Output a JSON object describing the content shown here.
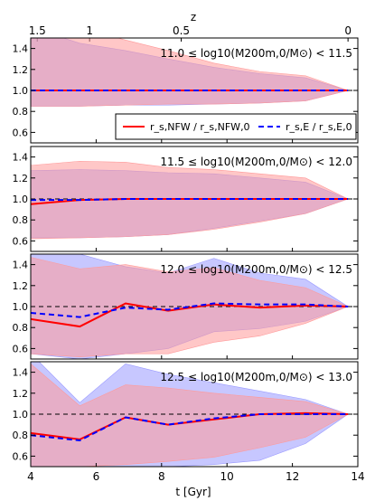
{
  "figure": {
    "top_axis_label": "z",
    "top_ticks": [
      {
        "z": 1.5,
        "t": 4.2,
        "label": "1.5"
      },
      {
        "z": 1.0,
        "t": 5.8,
        "label": "1"
      },
      {
        "z": 0.5,
        "t": 8.6,
        "label": "0.5"
      },
      {
        "z": 0.0,
        "t": 13.7,
        "label": "0"
      }
    ],
    "legend": {
      "nfw_label": "r_s,NFW / r_s,NFW,0",
      "e_label": "r_s,E / r_s,E,0"
    },
    "colors": {
      "nfw_line": "#ff0000",
      "e_line": "#0000ff",
      "nfw_band": "#ff9999",
      "e_band": "#9999ff",
      "overlap": "#b07fc0",
      "reference": "#000000"
    }
  },
  "chart_data": [
    {
      "type": "line",
      "panel_label": "11.0 ≤ log10(M200m,0/M⊙) < 11.5",
      "xlim": [
        4,
        14
      ],
      "ylim": [
        0.5,
        1.5
      ],
      "yticks": [
        0.6,
        0.8,
        1.0,
        1.2,
        1.4
      ],
      "x": [
        4.0,
        5.5,
        6.9,
        8.2,
        9.6,
        11.0,
        12.4,
        13.7
      ],
      "series": [
        {
          "name": "r_s,NFW / r_s,NFW,0",
          "values": [
            1.0,
            1.0,
            1.0,
            1.0,
            1.0,
            1.0,
            1.0,
            1.0
          ],
          "band_low": [
            0.85,
            0.85,
            0.86,
            0.87,
            0.87,
            0.88,
            0.9,
            1.0
          ],
          "band_high": [
            1.6,
            1.6,
            1.48,
            1.38,
            1.26,
            1.18,
            1.14,
            1.0
          ]
        },
        {
          "name": "r_s,E / r_s,E,0",
          "values": [
            1.0,
            1.0,
            1.0,
            1.0,
            1.0,
            1.0,
            1.0,
            1.0
          ],
          "band_low": [
            0.85,
            0.85,
            0.86,
            0.86,
            0.87,
            0.88,
            0.9,
            1.0
          ],
          "band_high": [
            1.6,
            1.45,
            1.38,
            1.3,
            1.22,
            1.16,
            1.12,
            1.0
          ]
        }
      ]
    },
    {
      "type": "line",
      "panel_label": "11.5 ≤ log10(M200m,0/M⊙) < 12.0",
      "xlim": [
        4,
        14
      ],
      "ylim": [
        0.5,
        1.5
      ],
      "yticks": [
        0.6,
        0.8,
        1.0,
        1.2,
        1.4
      ],
      "x": [
        4.0,
        5.5,
        6.9,
        8.2,
        9.6,
        11.0,
        12.4,
        13.7
      ],
      "series": [
        {
          "name": "r_s,NFW / r_s,NFW,0",
          "values": [
            0.95,
            0.99,
            1.0,
            1.0,
            1.0,
            1.0,
            1.0,
            1.0
          ],
          "band_low": [
            0.62,
            0.63,
            0.64,
            0.66,
            0.71,
            0.78,
            0.86,
            1.0
          ],
          "band_high": [
            1.32,
            1.36,
            1.35,
            1.3,
            1.28,
            1.24,
            1.2,
            1.0
          ]
        },
        {
          "name": "r_s,E / r_s,E,0",
          "values": [
            0.99,
            0.99,
            1.0,
            1.0,
            1.0,
            1.0,
            1.0,
            1.0
          ],
          "band_low": [
            0.63,
            0.63,
            0.64,
            0.66,
            0.72,
            0.79,
            0.86,
            1.0
          ],
          "band_high": [
            1.27,
            1.28,
            1.27,
            1.25,
            1.24,
            1.2,
            1.16,
            1.0
          ]
        }
      ]
    },
    {
      "type": "line",
      "panel_label": "12.0 ≤ log10(M200m,0/M⊙) < 12.5",
      "xlim": [
        4,
        14
      ],
      "ylim": [
        0.5,
        1.5
      ],
      "yticks": [
        0.6,
        0.8,
        1.0,
        1.2,
        1.4
      ],
      "x": [
        4.0,
        5.5,
        6.9,
        8.2,
        9.6,
        11.0,
        12.4,
        13.7
      ],
      "series": [
        {
          "name": "r_s,NFW / r_s,NFW,0",
          "values": [
            0.88,
            0.81,
            1.03,
            0.96,
            1.02,
            0.99,
            1.01,
            1.0
          ],
          "band_low": [
            0.55,
            0.52,
            0.55,
            0.55,
            0.66,
            0.72,
            0.84,
            1.0
          ],
          "band_high": [
            1.47,
            1.36,
            1.4,
            1.33,
            1.37,
            1.25,
            1.18,
            1.0
          ]
        },
        {
          "name": "r_s,E / r_s,E,0",
          "values": [
            0.94,
            0.9,
            0.99,
            0.97,
            1.03,
            1.02,
            1.02,
            1.0
          ],
          "band_low": [
            0.55,
            0.5,
            0.55,
            0.6,
            0.76,
            0.79,
            0.86,
            1.0
          ],
          "band_high": [
            1.62,
            1.5,
            1.38,
            1.32,
            1.46,
            1.32,
            1.26,
            1.0
          ]
        }
      ]
    },
    {
      "type": "line",
      "panel_label": "12.5 ≤ log10(M200m,0/M⊙) < 13.0",
      "xlim": [
        4,
        14
      ],
      "ylim": [
        0.5,
        1.5
      ],
      "yticks": [
        0.6,
        0.8,
        1.0,
        1.2,
        1.4
      ],
      "xticks": [
        4,
        6,
        8,
        10,
        12,
        14
      ],
      "xlabel": "t [Gyr]",
      "x": [
        4.0,
        5.5,
        6.9,
        8.2,
        9.6,
        11.0,
        12.4,
        13.7
      ],
      "series": [
        {
          "name": "r_s,NFW / r_s,NFW,0",
          "values": [
            0.82,
            0.76,
            0.97,
            0.9,
            0.95,
            1.0,
            1.01,
            1.0
          ],
          "band_low": [
            0.5,
            0.5,
            0.52,
            0.55,
            0.59,
            0.68,
            0.78,
            1.0
          ],
          "band_high": [
            1.48,
            1.08,
            1.28,
            1.25,
            1.2,
            1.16,
            1.12,
            1.0
          ]
        },
        {
          "name": "r_s,E / r_s,E,0",
          "values": [
            0.8,
            0.75,
            0.97,
            0.9,
            0.96,
            1.0,
            1.0,
            1.0
          ],
          "band_low": [
            0.5,
            0.5,
            0.5,
            0.5,
            0.52,
            0.56,
            0.72,
            1.0
          ],
          "band_high": [
            1.58,
            1.11,
            1.48,
            1.38,
            1.3,
            1.22,
            1.14,
            1.0
          ]
        }
      ]
    }
  ]
}
